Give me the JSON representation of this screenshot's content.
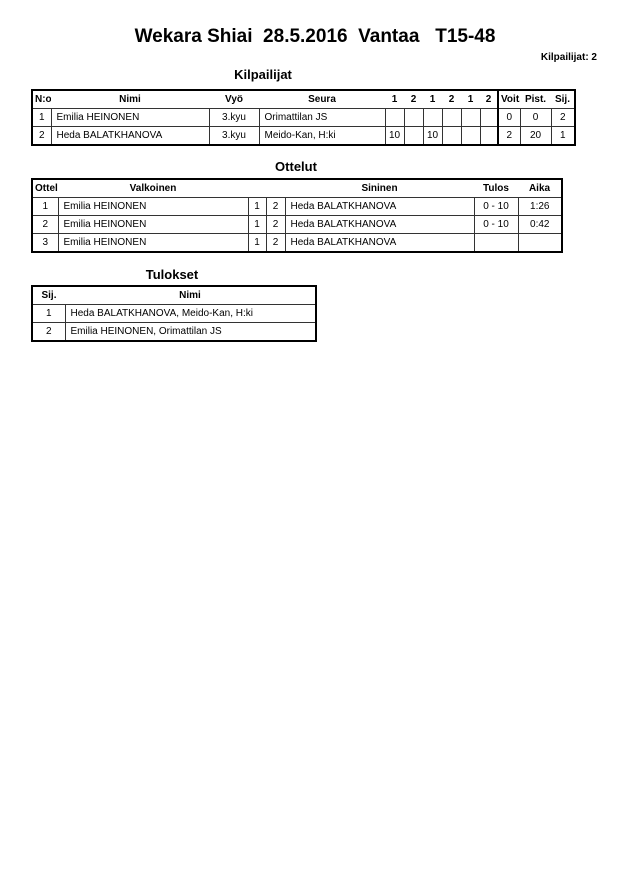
{
  "title": "Wekara Shiai  28.5.2016  Vantaa   T15-48",
  "competitor_count": "Kilpailijat: 2",
  "competitors": {
    "heading": "Kilpailijat",
    "headers": [
      "N:o",
      "Nimi",
      "Vyö",
      "Seura",
      "1",
      "2",
      "1",
      "2",
      "1",
      "2",
      "Voit.",
      "Pist.",
      "Sij."
    ],
    "rows": [
      [
        "1",
        "Emilia HEINONEN",
        "3.kyu",
        "Orimattilan JS",
        "",
        "",
        "",
        "",
        "",
        "",
        "0",
        "0",
        "2"
      ],
      [
        "2",
        "Heda BALATKHANOVA",
        "3.kyu",
        "Meido-Kan, H:ki",
        "10",
        "",
        "10",
        "",
        "",
        "",
        "2",
        "20",
        "1"
      ]
    ]
  },
  "matches": {
    "heading": "Ottelut",
    "headers": [
      "Ottelu",
      "Valkoinen",
      "",
      "",
      "Sininen",
      "Tulos",
      "Aika"
    ],
    "rows": [
      [
        "1",
        "Emilia HEINONEN",
        "1",
        "2",
        "Heda BALATKHANOVA",
        "0 - 10",
        "1:26"
      ],
      [
        "2",
        "Emilia HEINONEN",
        "1",
        "2",
        "Heda BALATKHANOVA",
        "0 - 10",
        "0:42"
      ],
      [
        "3",
        "Emilia HEINONEN",
        "1",
        "2",
        "Heda BALATKHANOVA",
        "",
        ""
      ]
    ]
  },
  "results": {
    "heading": "Tulokset",
    "headers": [
      "Sij.",
      "Nimi"
    ],
    "rows": [
      [
        "1",
        "Heda BALATKHANOVA, Meido-Kan, H:ki"
      ],
      [
        "2",
        "Emilia HEINONEN, Orimattilan JS"
      ]
    ]
  }
}
